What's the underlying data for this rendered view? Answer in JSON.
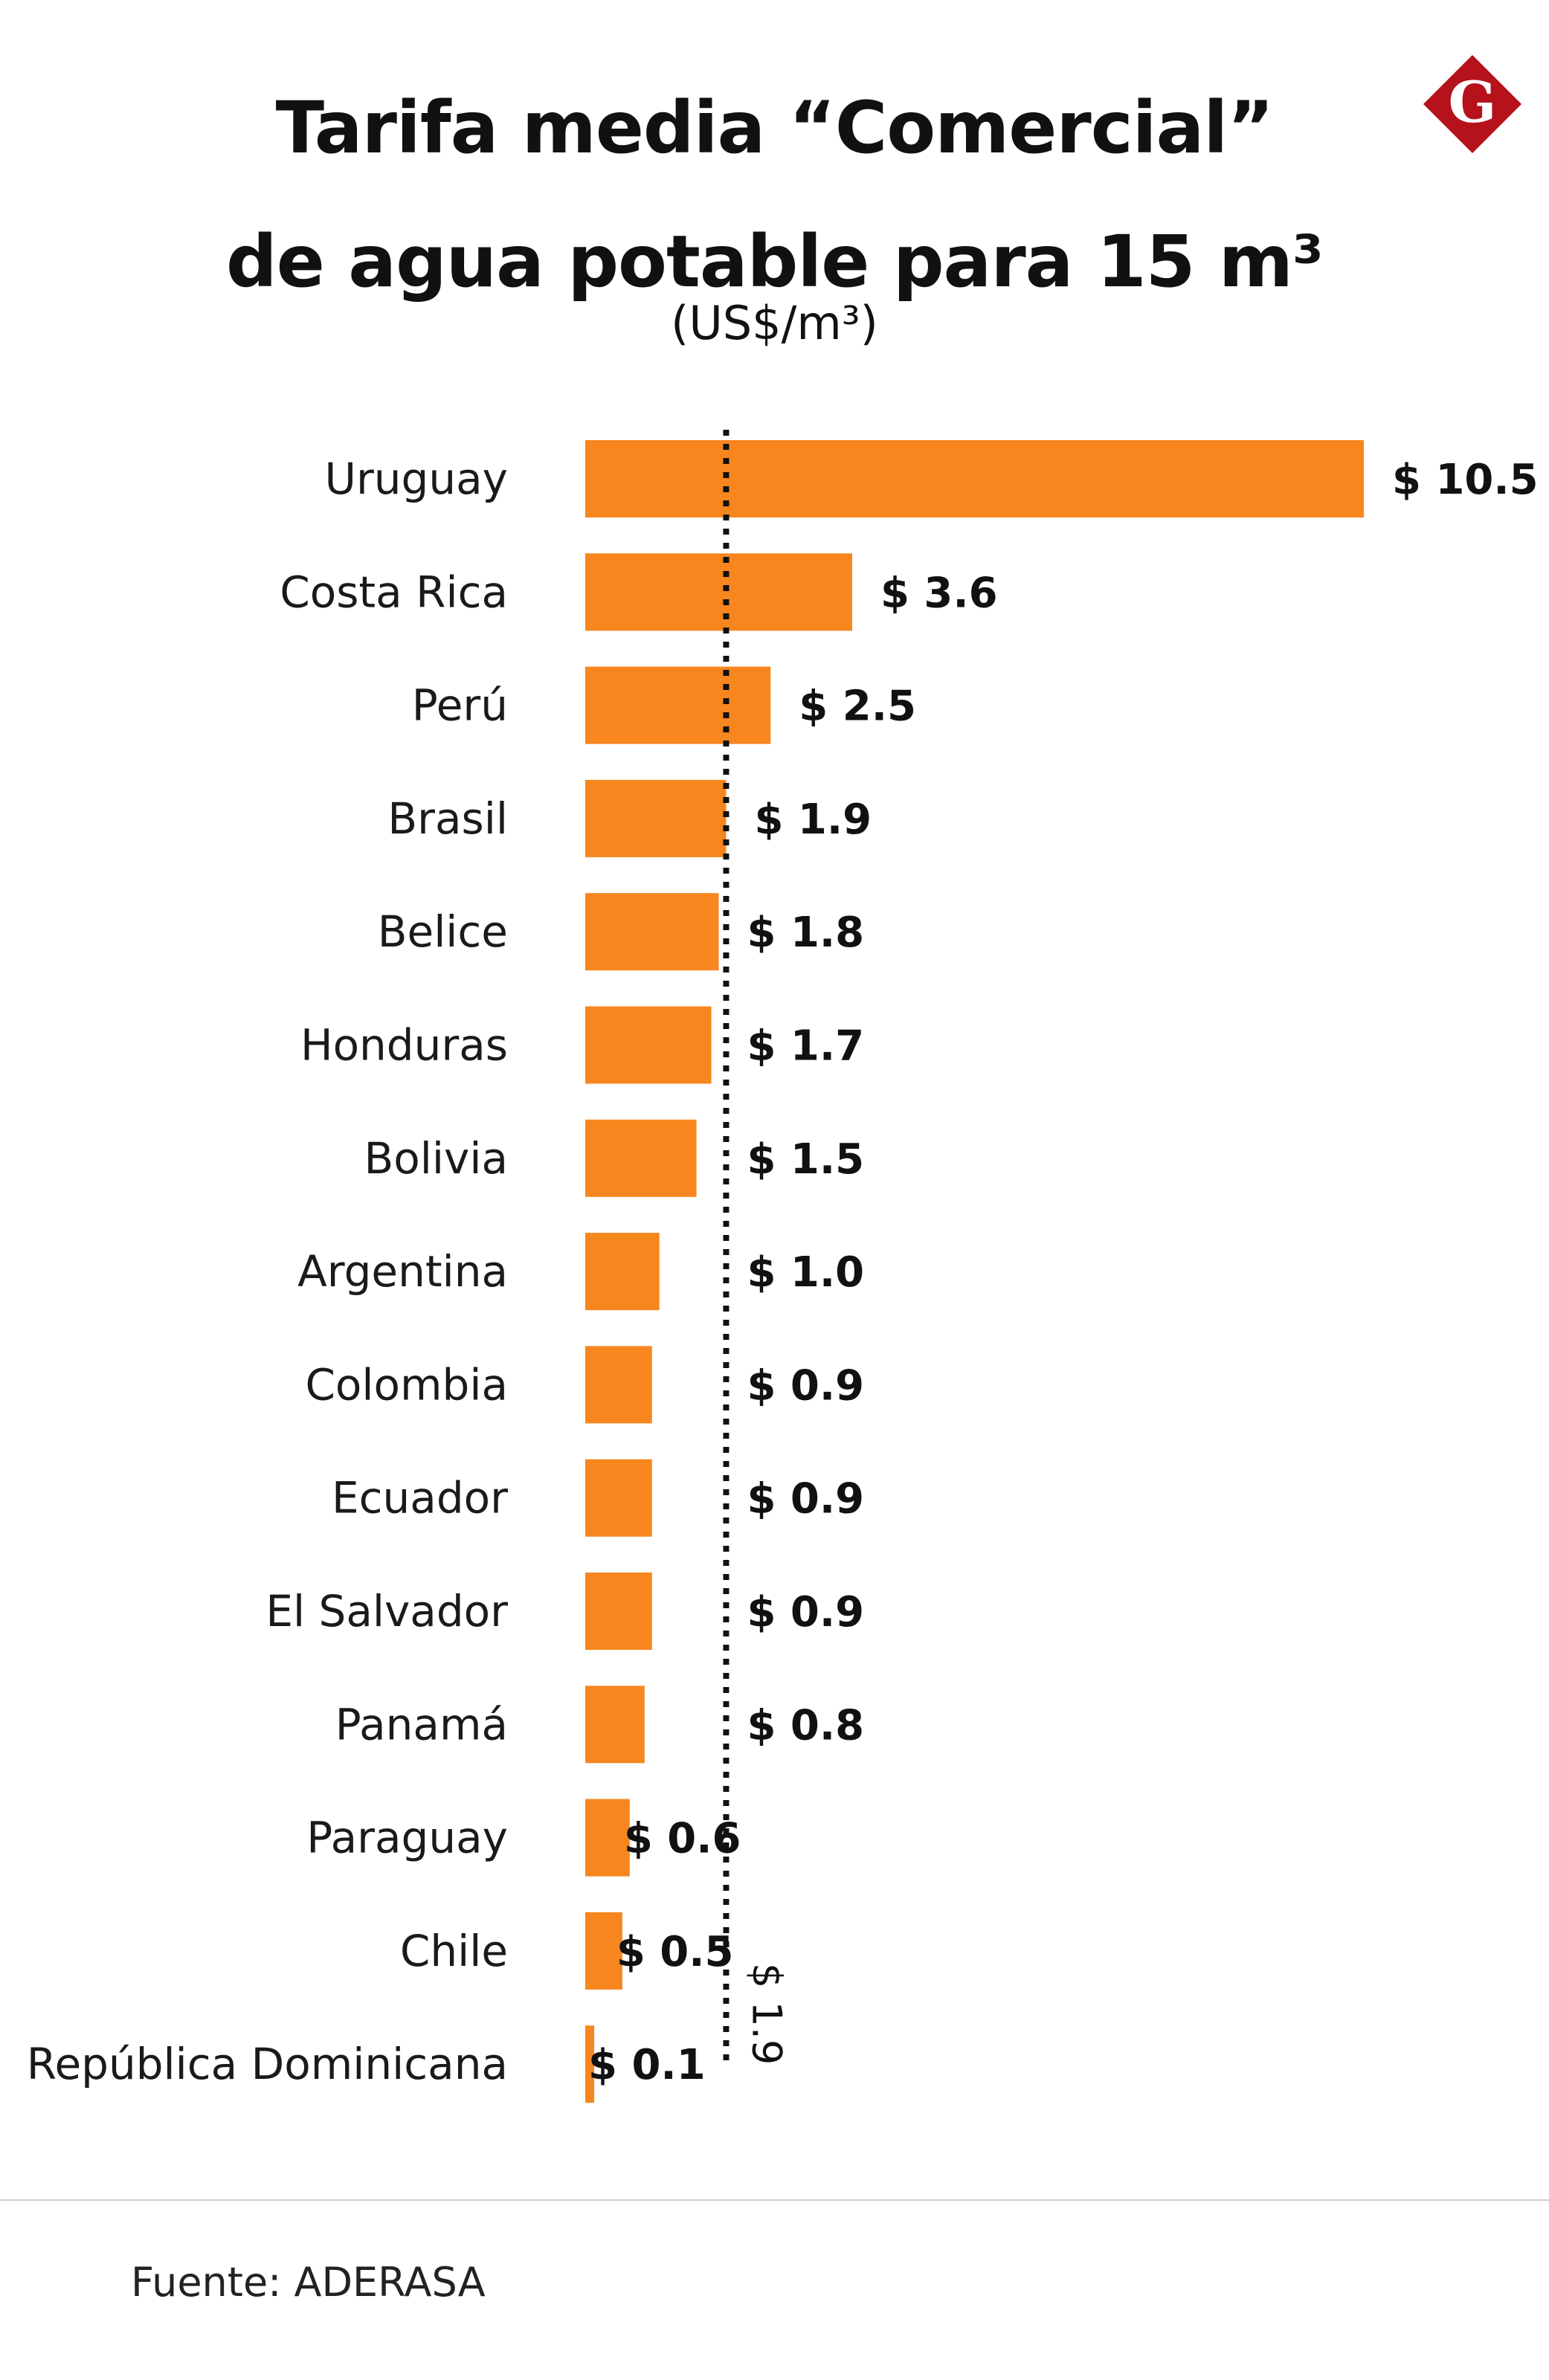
{
  "header": {
    "title_line1": "Tarifa media “Comercial”",
    "title_line2": "de agua potable para 15 m³",
    "subtitle": "(US$/m³)"
  },
  "logo": {
    "letter": "G",
    "icon": "diamond-g-logo-icon",
    "color": "#b5121b"
  },
  "colors": {
    "bar": "#f7861f",
    "reference_line": "#111111"
  },
  "chart_data": {
    "type": "bar",
    "orientation": "horizontal",
    "title": "Tarifa media “Comercial” de agua potable para 15 m³",
    "subtitle": "(US$/m³)",
    "unit_prefix": "$",
    "categories": [
      "Uruguay",
      "Costa Rica",
      "Perú",
      "Brasil",
      "Belice",
      "Honduras",
      "Bolivia",
      "Argentina",
      "Colombia",
      "Ecuador",
      "El Salvador",
      "Panamá",
      "Paraguay",
      "Chile",
      "República Dominicana"
    ],
    "values": [
      10.5,
      3.6,
      2.5,
      1.9,
      1.8,
      1.7,
      1.5,
      1.0,
      0.9,
      0.9,
      0.9,
      0.8,
      0.6,
      0.5,
      0.1
    ],
    "value_labels": [
      "$ 10.5",
      "$ 3.6",
      "$ 2.5",
      "$ 1.9",
      "$ 1.8",
      "$ 1.7",
      "$ 1.5",
      "$ 1.0",
      "$ 0.9",
      "$ 0.9",
      "$ 0.9",
      "$ 0.8",
      "$ 0.6",
      "$ 0.5",
      "$ 0.1"
    ],
    "reference_line": {
      "value": 1.9,
      "label": "$ 1.9",
      "style": "dotted"
    },
    "xlim": [
      0,
      10.5
    ],
    "grid": false,
    "legend": "none"
  },
  "footer": {
    "source": "Fuente: ADERASA"
  }
}
